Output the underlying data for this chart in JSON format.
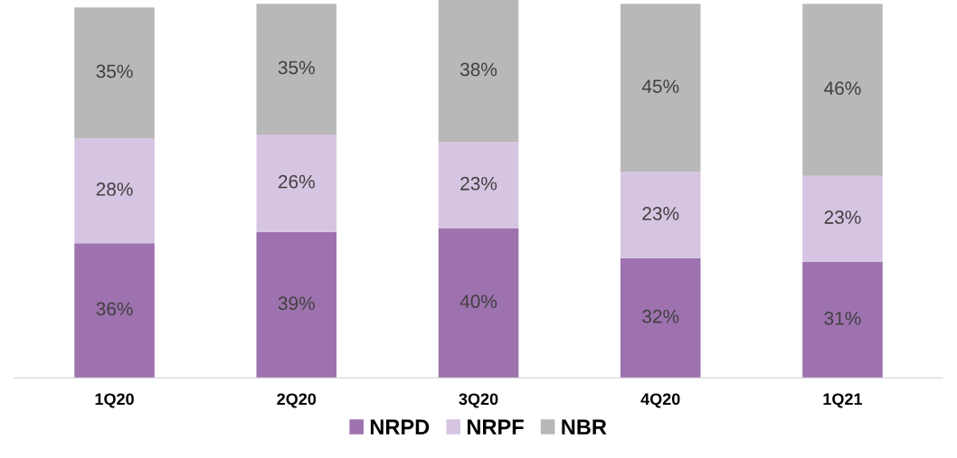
{
  "chart_data": {
    "type": "bar",
    "stacked": true,
    "categories": [
      "1Q20",
      "2Q20",
      "3Q20",
      "4Q20",
      "1Q21"
    ],
    "series": [
      {
        "name": "NRPD",
        "color": "#9e72ae",
        "values": [
          36,
          39,
          40,
          32,
          31
        ],
        "value_labels": [
          "36%",
          "39%",
          "40%",
          "32%",
          "31%"
        ]
      },
      {
        "name": "NRPF",
        "color": "#d5c5e2",
        "values": [
          28,
          26,
          23,
          23,
          23
        ],
        "value_labels": [
          "28%",
          "26%",
          "23%",
          "23%",
          "23%"
        ]
      },
      {
        "name": "NBR",
        "color": "#b9b8b9",
        "values": [
          35,
          35,
          38,
          45,
          46
        ],
        "value_labels": [
          "35%",
          "35%",
          "38%",
          "45%",
          "46%"
        ]
      }
    ],
    "legend": "bottom",
    "grid": false,
    "tick_labels": "x"
  }
}
